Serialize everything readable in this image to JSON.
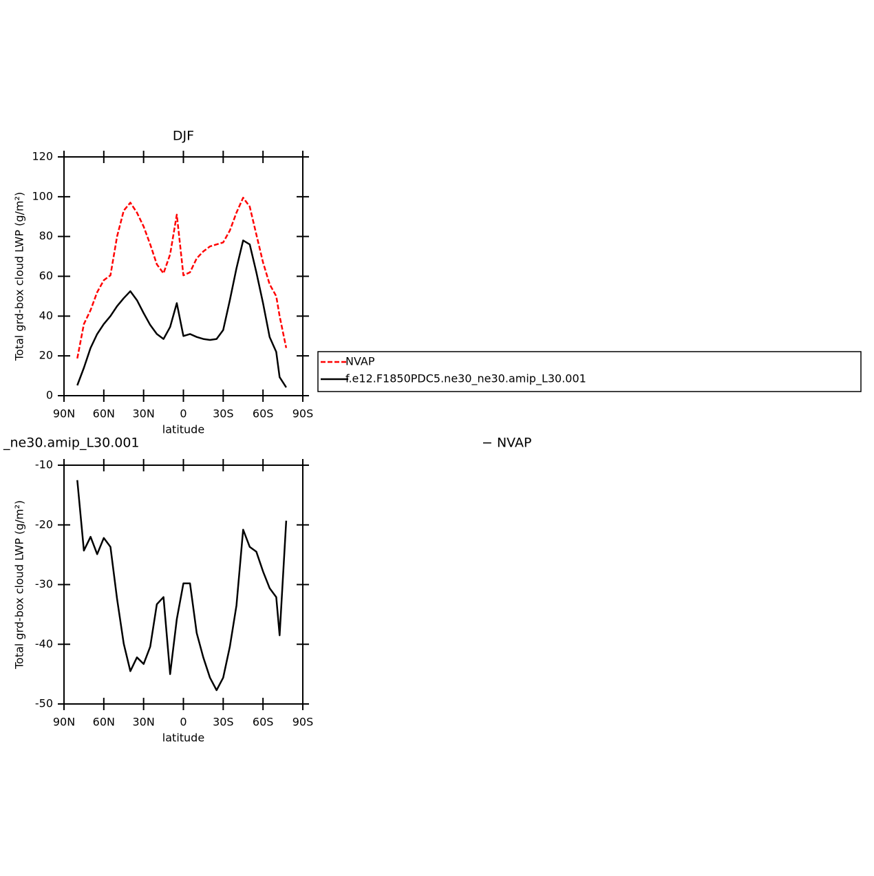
{
  "chart_data": [
    {
      "type": "line",
      "title": "DJF",
      "xlabel": "latitude",
      "ylabel": "Total grd-box cloud LWP (g/m²)",
      "x": [
        80,
        75,
        70,
        65,
        60,
        55,
        50,
        45,
        40,
        35,
        30,
        25,
        20,
        15,
        10,
        5,
        0,
        -5,
        -10,
        -15,
        -20,
        -25,
        -30,
        -35,
        -40,
        -45,
        -50,
        -55,
        -60,
        -65,
        -70,
        -72.5,
        -77.5
      ],
      "series": [
        {
          "name": "NVAP",
          "color": "#ff0000",
          "dashed": true,
          "values": [
            18.7,
            36,
            43,
            52,
            58,
            60.5,
            80,
            93,
            97,
            92,
            85,
            76,
            66,
            61.5,
            71,
            91,
            60.5,
            62,
            69,
            72.5,
            75,
            76,
            77,
            83,
            92,
            99.5,
            95,
            81,
            67,
            56,
            50,
            40,
            24
          ]
        },
        {
          "name": "f.e12.F1850PDC5.ne30_ne30.amip_L30.001",
          "color": "#000000",
          "dashed": false,
          "values": [
            5.2,
            14,
            24,
            31,
            36,
            40,
            45,
            49,
            52.5,
            48,
            41.5,
            35.5,
            31,
            28.5,
            34.5,
            46.5,
            30,
            31,
            29.5,
            28.5,
            28,
            28.5,
            33,
            48,
            64,
            78,
            76,
            62,
            46.5,
            29.5,
            22,
            9.3,
            4.2
          ]
        }
      ],
      "xlim": [
        90,
        -90
      ],
      "xticks": [
        {
          "value": 90,
          "label": "90N"
        },
        {
          "value": 60,
          "label": "60N"
        },
        {
          "value": 30,
          "label": "30N"
        },
        0,
        {
          "value": -30,
          "label": "30S"
        },
        {
          "value": -60,
          "label": "60S"
        },
        {
          "value": -90,
          "label": "90S"
        }
      ],
      "ylim": [
        0,
        120
      ],
      "yticks": [
        0,
        20,
        40,
        60,
        80,
        100,
        120
      ],
      "legend": "right"
    },
    {
      "type": "line",
      "title": "_ne30.amip_L30.001",
      "annotation": "− NVAP",
      "xlabel": "latitude",
      "ylabel": "Total grd-box cloud LWP (g/m²)",
      "x": [
        80,
        75,
        70,
        65,
        60,
        55,
        50,
        45,
        40,
        35,
        30,
        25,
        20,
        15,
        10,
        5,
        0,
        -5,
        -10,
        -15,
        -20,
        -25,
        -30,
        -35,
        -40,
        -45,
        -50,
        -55,
        -60,
        -65,
        -70,
        -72.5,
        -77.5
      ],
      "values": [
        -12.5,
        -24.3,
        -22,
        -24.9,
        -22.2,
        -23.7,
        -32.4,
        -39.9,
        -44.5,
        -42.2,
        -43.3,
        -40.4,
        -33.3,
        -32.1,
        -45,
        -35.8,
        -29.8,
        -29.8,
        -38.1,
        -42.2,
        -45.6,
        -47.7,
        -45.6,
        -40.4,
        -33.5,
        -20.8,
        -23.7,
        -24.5,
        -27.8,
        -30.6,
        -32.1,
        -38.5,
        -19.3
      ],
      "color": "#000000",
      "xlim": [
        90,
        -90
      ],
      "xticks": [
        {
          "value": 90,
          "label": "90N"
        },
        {
          "value": 60,
          "label": "60N"
        },
        {
          "value": 30,
          "label": "30N"
        },
        0,
        {
          "value": -30,
          "label": "30S"
        },
        {
          "value": -60,
          "label": "60S"
        },
        {
          "value": -90,
          "label": "90S"
        }
      ],
      "ylim": [
        -50,
        -10
      ],
      "yticks": [
        -50,
        -40,
        -30,
        -20,
        -10
      ]
    }
  ]
}
